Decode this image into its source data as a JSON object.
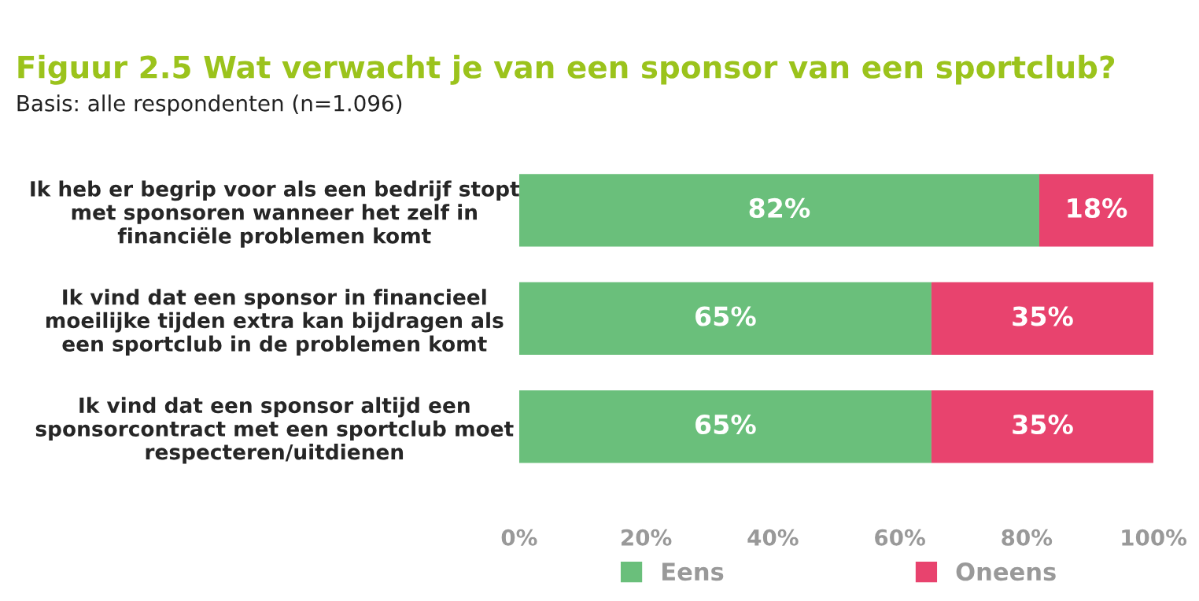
{
  "chart_data": {
    "type": "bar",
    "orientation": "horizontal",
    "stacked": true,
    "title": "Figuur 2.5 Wat verwacht je van een sponsor van een sportclub?",
    "subtitle": "Basis: alle respondenten (n=1.096)",
    "categories": [
      "Ik heb er begrip voor als een bedrijf stopt\nmet sponsoren wanneer het zelf in\nfinanciële problemen komt",
      "Ik vind dat een sponsor in financieel\nmoeilijke tijden extra kan bijdragen als\neen sportclub in de problemen komt",
      "Ik vind dat een sponsor altijd een\nsponsorcontract met een sportclub moet\nrespecteren/uitdienen"
    ],
    "series": [
      {
        "name": "Eens",
        "color": "#6abf7b",
        "values": [
          82,
          65,
          65
        ],
        "value_labels": [
          "82%",
          "65%",
          "65%"
        ]
      },
      {
        "name": "Oneens",
        "color": "#e8436e",
        "values": [
          18,
          35,
          35
        ],
        "value_labels": [
          "18%",
          "35%",
          "35%"
        ]
      }
    ],
    "xlim": [
      0,
      100
    ],
    "xticks": [
      {
        "value": 0,
        "label": "0%"
      },
      {
        "value": 20,
        "label": "20%"
      },
      {
        "value": 40,
        "label": "40%"
      },
      {
        "value": 60,
        "label": "60%"
      },
      {
        "value": 80,
        "label": "80%"
      },
      {
        "value": 100,
        "label": "100%"
      }
    ],
    "grid": false,
    "legend": "bottom"
  }
}
